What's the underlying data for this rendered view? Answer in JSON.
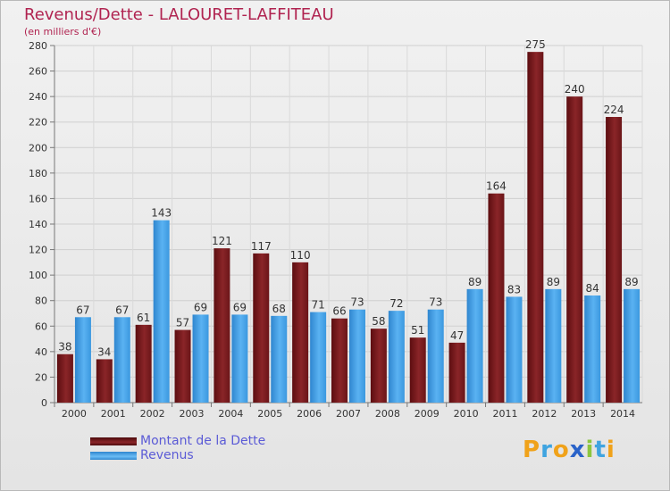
{
  "header": {
    "title": "Revenus/Dette - LALOURET-LAFFITEAU",
    "subtitle": "(en milliers d'€)"
  },
  "colors": {
    "dette": "#7a1b1e",
    "revenus": "#3f9fe6",
    "title": "#b02350",
    "legend_text": "#5b5bd6"
  },
  "legend": {
    "items": [
      {
        "label": "Montant de la Dette",
        "color": "#7a1b1e"
      },
      {
        "label": "Revenus",
        "color": "#3f9fe6"
      }
    ]
  },
  "logo": {
    "text": "Proxiti"
  },
  "chart_data": {
    "type": "bar",
    "title": "Revenus/Dette - LALOURET-LAFFITEAU",
    "subtitle": "(en milliers d'€)",
    "xlabel": "",
    "ylabel": "",
    "ylim": [
      0,
      280
    ],
    "yticks": [
      0,
      20,
      40,
      60,
      80,
      100,
      120,
      140,
      160,
      180,
      200,
      220,
      240,
      260,
      280
    ],
    "grid": true,
    "legend_position": "bottom-left",
    "categories": [
      "2000",
      "2001",
      "2002",
      "2003",
      "2004",
      "2005",
      "2006",
      "2007",
      "2008",
      "2009",
      "2010",
      "2011",
      "2012",
      "2013",
      "2014"
    ],
    "series": [
      {
        "name": "Montant de la Dette",
        "values": [
          38,
          34,
          61,
          57,
          121,
          117,
          110,
          66,
          58,
          51,
          47,
          164,
          275,
          240,
          224
        ]
      },
      {
        "name": "Revenus",
        "values": [
          67,
          67,
          143,
          69,
          69,
          68,
          71,
          73,
          72,
          73,
          89,
          83,
          89,
          84,
          89
        ]
      }
    ]
  }
}
